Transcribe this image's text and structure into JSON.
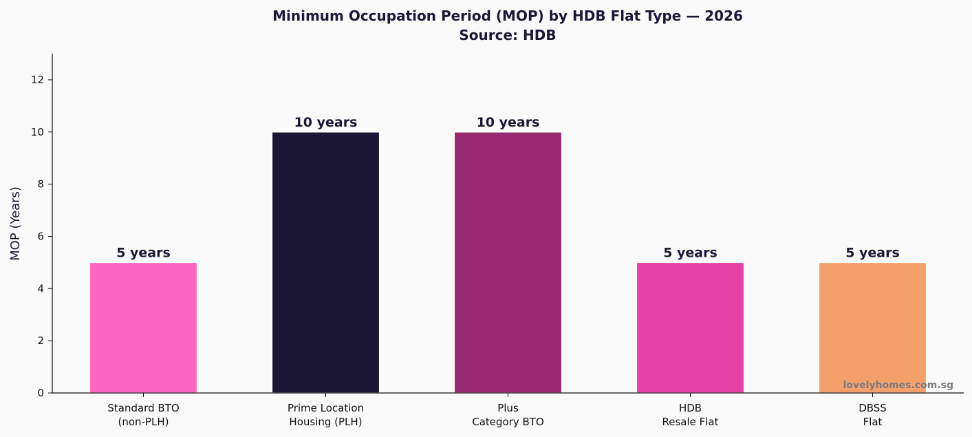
{
  "chart_data": {
    "type": "bar",
    "title": "Minimum Occupation Period (MOP) by HDB Flat Type — 2026",
    "subtitle": "Source: HDB",
    "ylabel": "MOP (Years)",
    "xlabel": "",
    "ylim": [
      0,
      13
    ],
    "yticks": [
      0,
      2,
      4,
      6,
      8,
      10,
      12
    ],
    "grid": false,
    "categories": [
      [
        "Standard BTO",
        "(non-PLH)"
      ],
      [
        "Prime Location",
        "Housing (PLH)"
      ],
      [
        "Plus",
        "Category BTO"
      ],
      [
        "HDB",
        "Resale Flat"
      ],
      [
        "DBSS",
        "Flat"
      ]
    ],
    "values": [
      5,
      10,
      10,
      5,
      5
    ],
    "data_labels": [
      "5 years",
      "10 years",
      "10 years",
      "5 years",
      "5 years"
    ],
    "colors": [
      "#ff66c4",
      "#1b1735",
      "#982b70",
      "#e641a6",
      "#f4a06b"
    ]
  },
  "watermark": "lovelyhomes.com.sg"
}
